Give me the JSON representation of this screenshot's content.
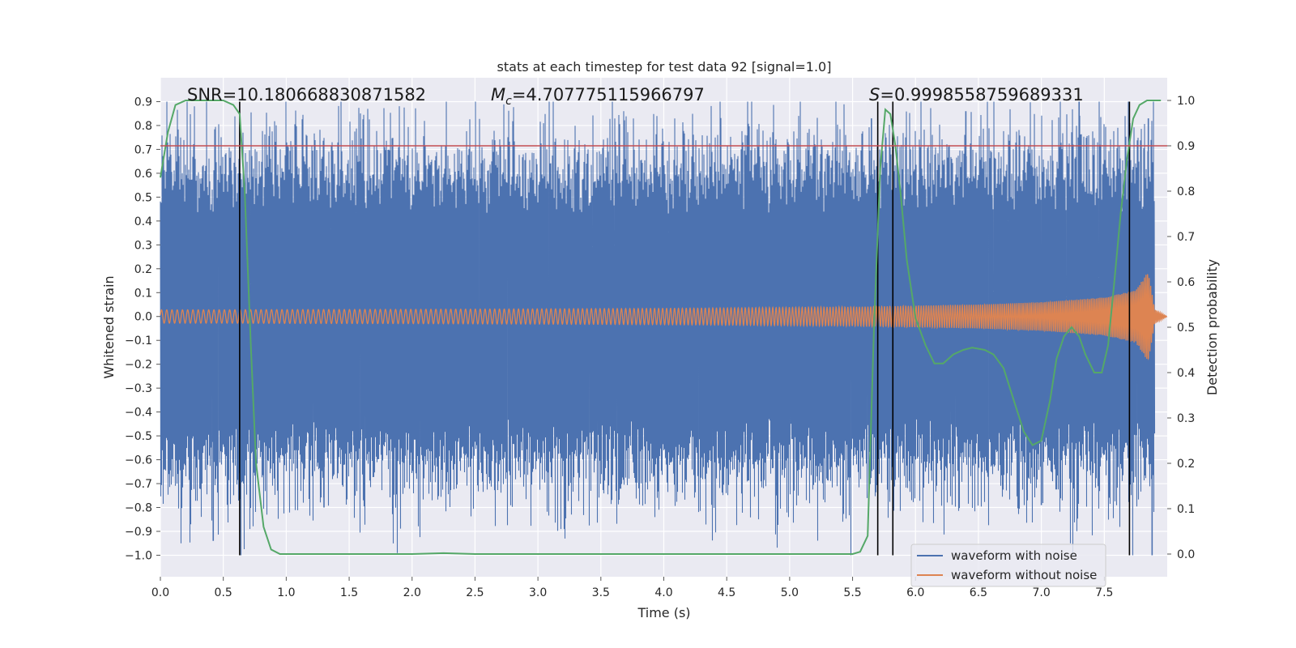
{
  "chart_data": {
    "type": "line",
    "title": "stats at each timestep for test data 92 [signal=1.0]",
    "xlabel": "Time (s)",
    "ylabel": "Whitened strain",
    "y2label": "Detection probability",
    "xlim": [
      0.0,
      8.0
    ],
    "ylim": [
      -1.09,
      1.0
    ],
    "y2lim": [
      -0.05,
      1.05
    ],
    "xticks": [
      0.0,
      0.5,
      1.0,
      1.5,
      2.0,
      2.5,
      3.0,
      3.5,
      4.0,
      4.5,
      5.0,
      5.5,
      6.0,
      6.5,
      7.0,
      7.5
    ],
    "xtick_labels": [
      "0.0",
      "0.5",
      "1.0",
      "1.5",
      "2.0",
      "2.5",
      "3.0",
      "3.5",
      "4.0",
      "4.5",
      "5.0",
      "5.5",
      "6.0",
      "6.5",
      "7.0",
      "7.5"
    ],
    "yticks": [
      -1.0,
      -0.9,
      -0.8,
      -0.7,
      -0.6,
      -0.5,
      -0.4,
      -0.3,
      -0.2,
      -0.1,
      0.0,
      0.1,
      0.2,
      0.3,
      0.4,
      0.5,
      0.6,
      0.7,
      0.8,
      0.9
    ],
    "ytick_labels": [
      "−1.0",
      "−0.9",
      "−0.8",
      "−0.7",
      "−0.6",
      "−0.5",
      "−0.4",
      "−0.3",
      "−0.2",
      "−0.1",
      "0.0",
      "0.1",
      "0.2",
      "0.3",
      "0.4",
      "0.5",
      "0.6",
      "0.7",
      "0.8",
      "0.9"
    ],
    "y2ticks": [
      0.0,
      0.1,
      0.2,
      0.3,
      0.4,
      0.5,
      0.6,
      0.7,
      0.8,
      0.9,
      1.0
    ],
    "y2tick_labels": [
      "0.0",
      "0.1",
      "0.2",
      "0.3",
      "0.4",
      "0.5",
      "0.6",
      "0.7",
      "0.8",
      "0.9",
      "1.0"
    ],
    "grid": true,
    "legend_position": "lower-right",
    "annotations": {
      "snr": "SNR=10.180668830871582",
      "mc_symbol": "M",
      "mc_sub": "c",
      "mc_value": "=4.707775115966797",
      "s_symbol": "S",
      "s_value": "=0.9998558759689331"
    },
    "threshold_line": {
      "y2": 0.9,
      "color": "#c44e52"
    },
    "vertical_markers_x": [
      0.63,
      5.7,
      5.82,
      7.7
    ],
    "noise_envelope": {
      "x": [
        0.0,
        7.9
      ],
      "amplitude_typical": 0.5,
      "max_positive_spike": 0.9,
      "min_negative_spike": -1.0
    },
    "signal_envelope": {
      "x": [
        0.0,
        0.5,
        1.0,
        2.0,
        3.0,
        4.0,
        5.0,
        5.5,
        6.0,
        6.5,
        7.0,
        7.5,
        7.75,
        7.85,
        7.9,
        8.0
      ],
      "amplitude": [
        0.028,
        0.028,
        0.029,
        0.03,
        0.032,
        0.034,
        0.038,
        0.04,
        0.045,
        0.05,
        0.06,
        0.08,
        0.11,
        0.19,
        0.03,
        0.0
      ]
    },
    "series": [
      {
        "name": "waveform with noise",
        "color": "#4c72b0",
        "axis": "left"
      },
      {
        "name": "waveform without noise",
        "color": "#dd8452",
        "axis": "left"
      },
      {
        "color": "#55a868",
        "axis": "right",
        "x": [
          0.0,
          0.06,
          0.12,
          0.2,
          0.3,
          0.4,
          0.5,
          0.58,
          0.63,
          0.67,
          0.72,
          0.76,
          0.82,
          0.88,
          0.95,
          1.05,
          1.5,
          2.0,
          2.25,
          2.5,
          3.0,
          4.0,
          5.0,
          5.5,
          5.56,
          5.62,
          5.67,
          5.72,
          5.76,
          5.8,
          5.84,
          5.88,
          5.93,
          6.0,
          6.08,
          6.15,
          6.22,
          6.3,
          6.38,
          6.45,
          6.55,
          6.62,
          6.7,
          6.78,
          6.86,
          6.93,
          7.0,
          7.07,
          7.12,
          7.18,
          7.24,
          7.3,
          7.35,
          7.42,
          7.48,
          7.53,
          7.58,
          7.63,
          7.68,
          7.73,
          7.78,
          7.84,
          7.9,
          7.95
        ],
        "values": [
          0.83,
          0.93,
          0.99,
          1.0,
          1.0,
          1.0,
          1.0,
          0.99,
          0.97,
          0.8,
          0.45,
          0.2,
          0.06,
          0.01,
          0.0,
          0.0,
          0.0,
          0.0,
          0.002,
          0.0,
          0.0,
          0.0,
          0.0,
          0.0,
          0.005,
          0.04,
          0.5,
          0.85,
          0.98,
          0.97,
          0.9,
          0.8,
          0.65,
          0.52,
          0.46,
          0.42,
          0.42,
          0.44,
          0.45,
          0.455,
          0.45,
          0.44,
          0.41,
          0.34,
          0.27,
          0.24,
          0.25,
          0.34,
          0.43,
          0.48,
          0.5,
          0.48,
          0.44,
          0.4,
          0.4,
          0.46,
          0.6,
          0.75,
          0.87,
          0.96,
          0.99,
          1.0,
          1.0,
          1.0
        ]
      }
    ]
  }
}
